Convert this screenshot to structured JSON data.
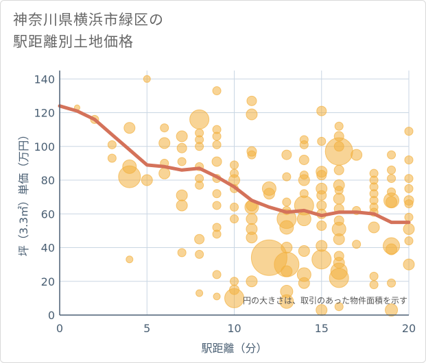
{
  "chart_data": {
    "type": "scatter",
    "title_line1": "神奈川県横浜市緑区の",
    "title_line2": "駅距離別土地価格",
    "xlabel": "駅距離（分）",
    "ylabel": "坪（3.3㎡）単価（万円）",
    "note": "円の大きさは、取引のあった物件面積を示す",
    "xlim": [
      0,
      20
    ],
    "ylim": [
      0,
      145
    ],
    "xticks": [
      0,
      5,
      10,
      15,
      20
    ],
    "yticks": [
      0,
      20,
      40,
      60,
      80,
      100,
      120,
      140
    ],
    "colors": {
      "bubble": "#f2b040",
      "line": "#d4725a",
      "grid": "#c9d6e3",
      "axis": "#4a5f73"
    },
    "trend_line": {
      "x": [
        0,
        1,
        2,
        3,
        4,
        5,
        6,
        7,
        8,
        9,
        10,
        11,
        12,
        13,
        14,
        15,
        16,
        17,
        18,
        19,
        20
      ],
      "y": [
        124,
        121,
        116,
        107,
        98,
        89,
        88,
        86,
        87,
        82,
        76,
        68,
        64,
        61,
        62,
        59,
        61,
        61,
        60,
        55,
        55
      ]
    },
    "points": [
      {
        "x": 1,
        "y": 123,
        "s": 4
      },
      {
        "x": 2,
        "y": 116,
        "s": 6
      },
      {
        "x": 3,
        "y": 101,
        "s": 6
      },
      {
        "x": 3,
        "y": 93,
        "s": 6
      },
      {
        "x": 4,
        "y": 111,
        "s": 8
      },
      {
        "x": 4,
        "y": 88,
        "s": 10
      },
      {
        "x": 4,
        "y": 82,
        "s": 16
      },
      {
        "x": 4,
        "y": 33,
        "s": 5
      },
      {
        "x": 5,
        "y": 140,
        "s": 5
      },
      {
        "x": 5,
        "y": 80,
        "s": 8
      },
      {
        "x": 6,
        "y": 111,
        "s": 6
      },
      {
        "x": 6,
        "y": 102,
        "s": 8
      },
      {
        "x": 6,
        "y": 90,
        "s": 6
      },
      {
        "x": 6,
        "y": 84,
        "s": 8
      },
      {
        "x": 7,
        "y": 106,
        "s": 8
      },
      {
        "x": 7,
        "y": 99,
        "s": 7
      },
      {
        "x": 7,
        "y": 91,
        "s": 6
      },
      {
        "x": 7,
        "y": 71,
        "s": 8
      },
      {
        "x": 7,
        "y": 65,
        "s": 8
      },
      {
        "x": 7,
        "y": 37,
        "s": 6
      },
      {
        "x": 8,
        "y": 116,
        "s": 14
      },
      {
        "x": 8,
        "y": 108,
        "s": 6
      },
      {
        "x": 8,
        "y": 104,
        "s": 6
      },
      {
        "x": 8,
        "y": 100,
        "s": 6
      },
      {
        "x": 8,
        "y": 88,
        "s": 6
      },
      {
        "x": 8,
        "y": 81,
        "s": 6
      },
      {
        "x": 8,
        "y": 77,
        "s": 6
      },
      {
        "x": 8,
        "y": 45,
        "s": 7
      },
      {
        "x": 8,
        "y": 36,
        "s": 6
      },
      {
        "x": 8,
        "y": 13,
        "s": 5
      },
      {
        "x": 9,
        "y": 133,
        "s": 6
      },
      {
        "x": 9,
        "y": 110,
        "s": 6
      },
      {
        "x": 9,
        "y": 106,
        "s": 6
      },
      {
        "x": 9,
        "y": 101,
        "s": 6
      },
      {
        "x": 9,
        "y": 91,
        "s": 7
      },
      {
        "x": 9,
        "y": 81,
        "s": 6
      },
      {
        "x": 9,
        "y": 72,
        "s": 6
      },
      {
        "x": 9,
        "y": 65,
        "s": 6
      },
      {
        "x": 9,
        "y": 52,
        "s": 6
      },
      {
        "x": 9,
        "y": 48,
        "s": 6
      },
      {
        "x": 9,
        "y": 24,
        "s": 6
      },
      {
        "x": 9,
        "y": 11,
        "s": 5
      },
      {
        "x": 10,
        "y": 89,
        "s": 6
      },
      {
        "x": 10,
        "y": 84,
        "s": 6
      },
      {
        "x": 10,
        "y": 80,
        "s": 8
      },
      {
        "x": 10,
        "y": 75,
        "s": 6
      },
      {
        "x": 10,
        "y": 64,
        "s": 6
      },
      {
        "x": 10,
        "y": 57,
        "s": 6
      },
      {
        "x": 10,
        "y": 20,
        "s": 6
      },
      {
        "x": 10,
        "y": 15,
        "s": 7
      },
      {
        "x": 10,
        "y": 10,
        "s": 14
      },
      {
        "x": 11,
        "y": 127,
        "s": 7
      },
      {
        "x": 11,
        "y": 119,
        "s": 8
      },
      {
        "x": 11,
        "y": 97,
        "s": 7
      },
      {
        "x": 11,
        "y": 95,
        "s": 6
      },
      {
        "x": 11,
        "y": 65,
        "s": 8
      },
      {
        "x": 11,
        "y": 64,
        "s": 10
      },
      {
        "x": 11,
        "y": 57,
        "s": 8
      },
      {
        "x": 11,
        "y": 51,
        "s": 8
      },
      {
        "x": 11,
        "y": 46,
        "s": 8
      },
      {
        "x": 11,
        "y": 20,
        "s": 8
      },
      {
        "x": 12,
        "y": 75,
        "s": 10
      },
      {
        "x": 12,
        "y": 72,
        "s": 8
      },
      {
        "x": 12,
        "y": 34,
        "s": 26
      },
      {
        "x": 13,
        "y": 95,
        "s": 7
      },
      {
        "x": 13,
        "y": 82,
        "s": 6
      },
      {
        "x": 13,
        "y": 67,
        "s": 6
      },
      {
        "x": 13,
        "y": 62,
        "s": 6
      },
      {
        "x": 13,
        "y": 57,
        "s": 14
      },
      {
        "x": 13,
        "y": 52,
        "s": 10
      },
      {
        "x": 13,
        "y": 40,
        "s": 8
      },
      {
        "x": 13,
        "y": 30,
        "s": 18
      },
      {
        "x": 13,
        "y": 26,
        "s": 8
      },
      {
        "x": 13,
        "y": 14,
        "s": 9
      },
      {
        "x": 13,
        "y": 8,
        "s": 10
      },
      {
        "x": 14,
        "y": 104,
        "s": 6
      },
      {
        "x": 14,
        "y": 101,
        "s": 6
      },
      {
        "x": 14,
        "y": 92,
        "s": 7
      },
      {
        "x": 14,
        "y": 83,
        "s": 6
      },
      {
        "x": 14,
        "y": 80,
        "s": 8
      },
      {
        "x": 14,
        "y": 72,
        "s": 6
      },
      {
        "x": 14,
        "y": 65,
        "s": 14
      },
      {
        "x": 14,
        "y": 57,
        "s": 10
      },
      {
        "x": 14,
        "y": 38,
        "s": 8
      },
      {
        "x": 14,
        "y": 24,
        "s": 10
      },
      {
        "x": 14,
        "y": 19,
        "s": 8
      },
      {
        "x": 15,
        "y": 121,
        "s": 7
      },
      {
        "x": 15,
        "y": 103,
        "s": 6
      },
      {
        "x": 15,
        "y": 85,
        "s": 8
      },
      {
        "x": 15,
        "y": 83,
        "s": 7
      },
      {
        "x": 15,
        "y": 75,
        "s": 8
      },
      {
        "x": 15,
        "y": 71,
        "s": 7
      },
      {
        "x": 15,
        "y": 65,
        "s": 7
      },
      {
        "x": 15,
        "y": 60,
        "s": 7
      },
      {
        "x": 15,
        "y": 53,
        "s": 7
      },
      {
        "x": 15,
        "y": 41,
        "s": 8
      },
      {
        "x": 15,
        "y": 33,
        "s": 14
      },
      {
        "x": 15,
        "y": 3,
        "s": 8
      },
      {
        "x": 16,
        "y": 112,
        "s": 6
      },
      {
        "x": 16,
        "y": 106,
        "s": 7
      },
      {
        "x": 16,
        "y": 100,
        "s": 7
      },
      {
        "x": 16,
        "y": 97,
        "s": 20
      },
      {
        "x": 16,
        "y": 86,
        "s": 7
      },
      {
        "x": 16,
        "y": 77,
        "s": 8
      },
      {
        "x": 16,
        "y": 74,
        "s": 6
      },
      {
        "x": 16,
        "y": 69,
        "s": 8
      },
      {
        "x": 16,
        "y": 63,
        "s": 7
      },
      {
        "x": 16,
        "y": 56,
        "s": 7
      },
      {
        "x": 16,
        "y": 51,
        "s": 10
      },
      {
        "x": 16,
        "y": 45,
        "s": 8
      },
      {
        "x": 16,
        "y": 35,
        "s": 7
      },
      {
        "x": 16,
        "y": 31,
        "s": 8
      },
      {
        "x": 16,
        "y": 26,
        "s": 12
      },
      {
        "x": 16,
        "y": 22,
        "s": 14
      },
      {
        "x": 16,
        "y": 5,
        "s": 6
      },
      {
        "x": 17,
        "y": 95,
        "s": 8
      },
      {
        "x": 17,
        "y": 62,
        "s": 6
      },
      {
        "x": 17,
        "y": 42,
        "s": 6
      },
      {
        "x": 18,
        "y": 84,
        "s": 6
      },
      {
        "x": 18,
        "y": 80,
        "s": 6
      },
      {
        "x": 18,
        "y": 76,
        "s": 6
      },
      {
        "x": 18,
        "y": 72,
        "s": 6
      },
      {
        "x": 18,
        "y": 68,
        "s": 6
      },
      {
        "x": 18,
        "y": 64,
        "s": 6
      },
      {
        "x": 18,
        "y": 61,
        "s": 6
      },
      {
        "x": 18,
        "y": 52,
        "s": 8
      },
      {
        "x": 18,
        "y": 23,
        "s": 6
      },
      {
        "x": 18,
        "y": 18,
        "s": 6
      },
      {
        "x": 19,
        "y": 95,
        "s": 6
      },
      {
        "x": 19,
        "y": 86,
        "s": 6
      },
      {
        "x": 19,
        "y": 81,
        "s": 6
      },
      {
        "x": 19,
        "y": 73,
        "s": 6
      },
      {
        "x": 19,
        "y": 68,
        "s": 11
      },
      {
        "x": 19,
        "y": 67,
        "s": 8
      },
      {
        "x": 19,
        "y": 41,
        "s": 12
      },
      {
        "x": 19,
        "y": 39,
        "s": 8
      },
      {
        "x": 19,
        "y": 19,
        "s": 6
      },
      {
        "x": 19,
        "y": 3,
        "s": 9
      },
      {
        "x": 20,
        "y": 109,
        "s": 6
      },
      {
        "x": 20,
        "y": 92,
        "s": 6
      },
      {
        "x": 20,
        "y": 81,
        "s": 6
      },
      {
        "x": 20,
        "y": 75,
        "s": 6
      },
      {
        "x": 20,
        "y": 68,
        "s": 7
      },
      {
        "x": 20,
        "y": 66,
        "s": 6
      },
      {
        "x": 20,
        "y": 58,
        "s": 6
      },
      {
        "x": 20,
        "y": 51,
        "s": 8
      },
      {
        "x": 20,
        "y": 44,
        "s": 6
      },
      {
        "x": 20,
        "y": 30,
        "s": 8
      }
    ]
  }
}
